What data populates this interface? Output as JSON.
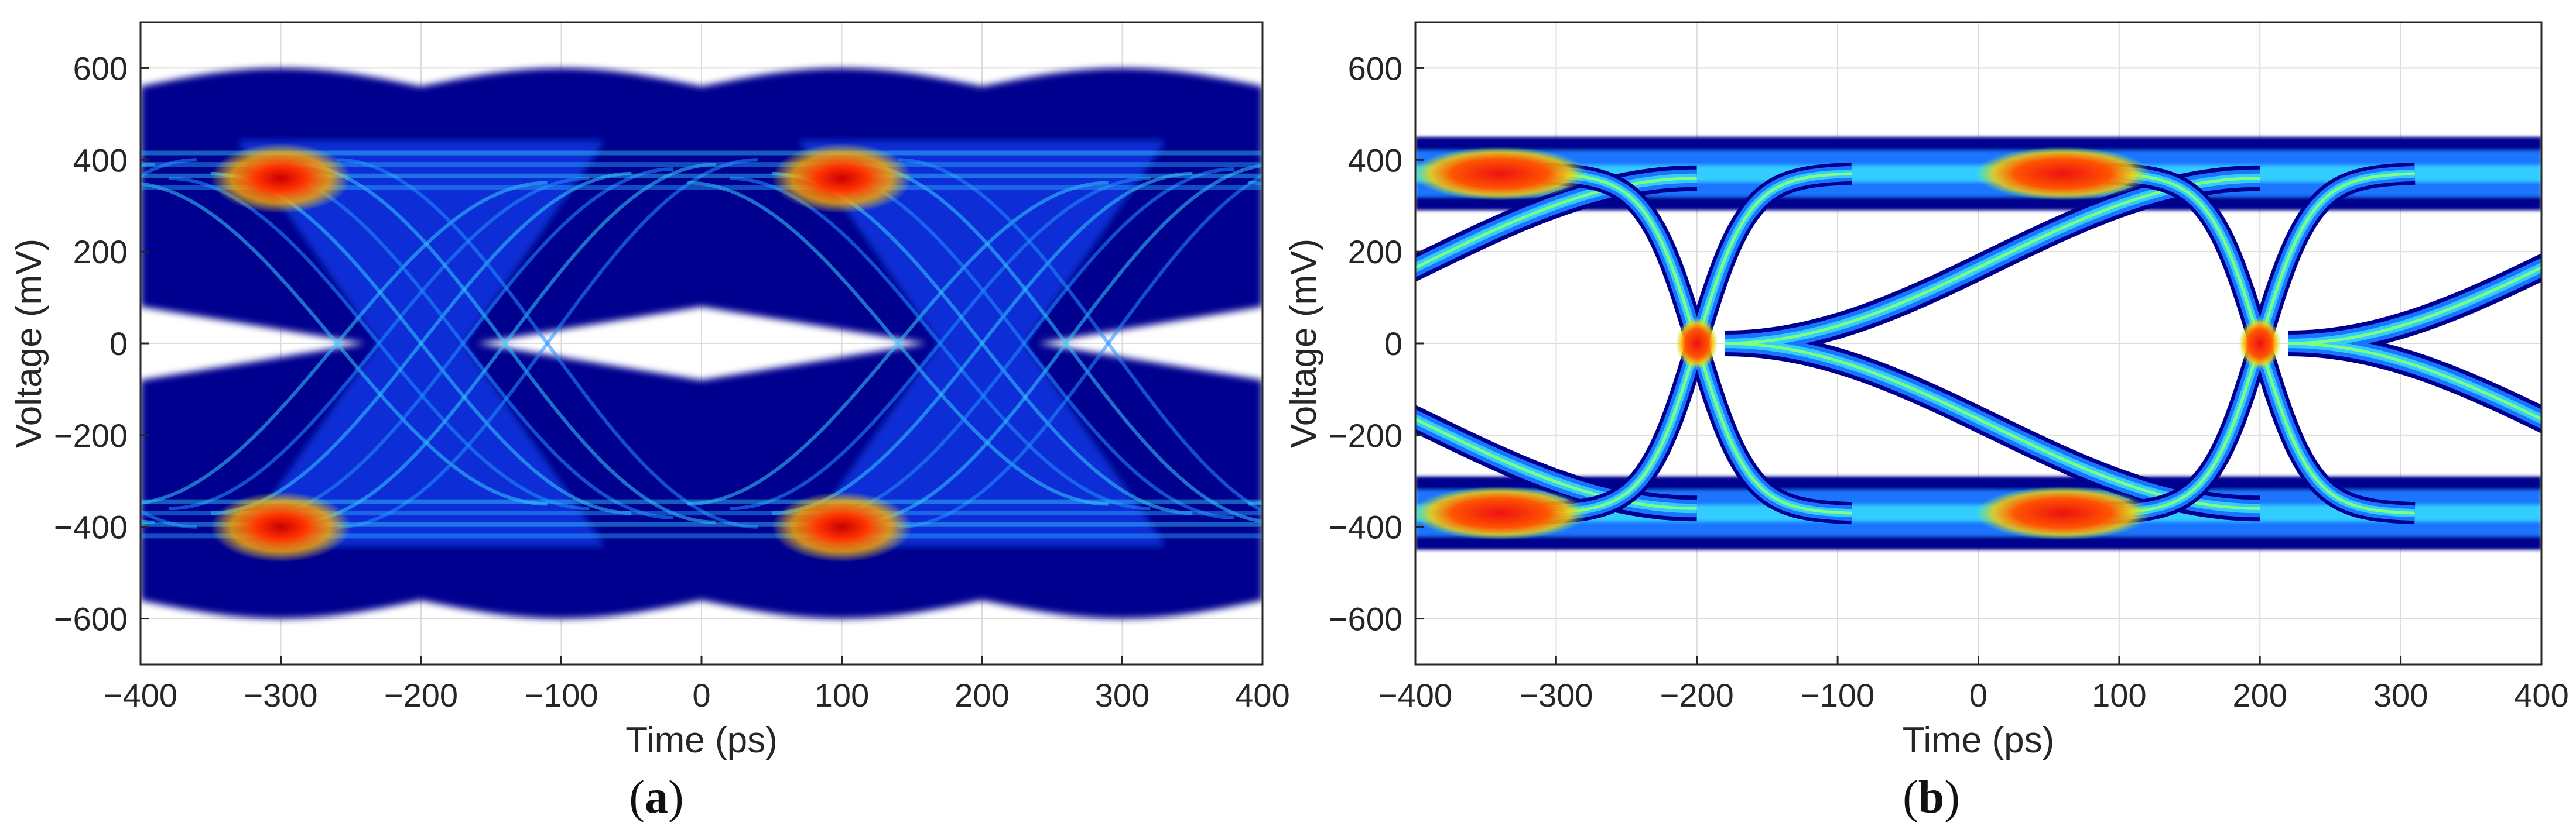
{
  "chart_data": [
    {
      "type": "heatmap",
      "panel_label": "a",
      "xlabel": "Time (ps)",
      "ylabel": "Voltage (mV)",
      "xlim": [
        -400,
        400
      ],
      "ylim": [
        -700,
        700
      ],
      "xticks": [
        -400,
        -300,
        -200,
        -100,
        0,
        100,
        200,
        300,
        400
      ],
      "yticks": [
        -600,
        -400,
        -200,
        0,
        200,
        400,
        600
      ],
      "grid": true,
      "colormap": "jet",
      "eye_diagram": {
        "unit_interval_ps": 400,
        "crossing_times_ps": [
          -200,
          200
        ],
        "crossing_voltage_mV": 0,
        "level_high_mV": 380,
        "level_low_mV": -380,
        "level_hot_spots_ps": [
          -300,
          100
        ],
        "spread_high_mV": [
          100,
          600
        ],
        "spread_low_mV": [
          -600,
          -140
        ],
        "eye_opening_mV": [
          -60,
          160
        ]
      }
    },
    {
      "type": "heatmap",
      "panel_label": "b",
      "xlabel": "Time (ps)",
      "ylabel": "Voltage (mV)",
      "xlim": [
        -400,
        400
      ],
      "ylim": [
        -700,
        700
      ],
      "xticks": [
        -400,
        -300,
        -200,
        -100,
        0,
        100,
        200,
        300,
        400
      ],
      "yticks": [
        -600,
        -400,
        -200,
        0,
        200,
        400,
        600
      ],
      "grid": true,
      "colormap": "jet",
      "eye_diagram": {
        "unit_interval_ps": 400,
        "crossing_times_ps": [
          -200,
          200
        ],
        "crossing_voltage_mV": 0,
        "level_high_mV": 370,
        "level_low_mV": -370,
        "level_hot_spots_ps": [
          -340,
          60
        ],
        "spread_high_mV": [
          270,
          450
        ],
        "spread_low_mV": [
          -450,
          -270
        ],
        "eye_opening_mV": [
          -300,
          320
        ]
      }
    }
  ],
  "colors": {
    "background_fill": "#00008f",
    "dense_fill": "#0a2fd6",
    "trace_cyan": "#33ccff",
    "trace_green": "#7fff7f",
    "hot_yellow": "#ffd700",
    "hot_red": "#ee1111",
    "grid": "#dcdcdc",
    "axis": "#262626"
  }
}
